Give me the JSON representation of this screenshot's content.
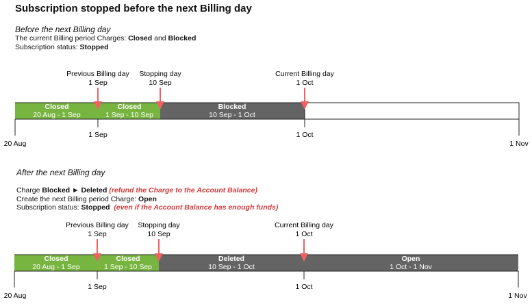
{
  "title": "Subscription stopped before the next Billing day",
  "before": {
    "heading": "Before the next Billing day",
    "line1_prefix": "The current Billing period Charges: ",
    "line1_b1": "Closed",
    "line1_mid": " and ",
    "line1_b2": "Blocked",
    "line2_prefix": "Subscription status: ",
    "line2_b": "Stopped"
  },
  "after": {
    "heading": "After the next Billing day",
    "line1_prefix": "Charge ",
    "line1_b1": "Blocked",
    "line1_arrow": " ► ",
    "line1_b2": "Deleted",
    "line1_note": " (refund the Charge to the Account Balance)",
    "line2_prefix": "Create the next Billing period Charge: ",
    "line2_b": "Open",
    "line3_prefix": "Subscription status: ",
    "line3_b": "Stopped",
    "line3_note": "  (even if the Account Balance has enough funds)"
  },
  "markers": {
    "prev_label": "Previous Billing day",
    "prev_date": "1 Sep",
    "stop_label": "Stopping day",
    "stop_date": "10 Sep",
    "current_label": "Current Billing day",
    "current_date": "1 Oct"
  },
  "axis": {
    "start": "20 Aug",
    "tick1": "1 Sep",
    "tick2": "1 Oct",
    "end": "1 Nov"
  },
  "timeline1": {
    "seg1_name": "Closed",
    "seg1_range": "20 Aug - 1 Sep",
    "seg2_name": "Closed",
    "seg2_range": "1 Sep - 10 Sep",
    "seg3_name": "Blocked",
    "seg3_range": "10 Sep - 1 Oct"
  },
  "timeline2": {
    "seg1_name": "Closed",
    "seg1_range": "20 Aug - 1 Sep",
    "seg2_name": "Closed",
    "seg2_range": "1 Sep - 10 Sep",
    "seg3_name": "Deleted",
    "seg3_range": "10 Sep - 1 Oct",
    "seg4_name": "Open",
    "seg4_range": "1 Oct - 1 Nov"
  },
  "colors": {
    "closed": "#77b540",
    "dark": "#646464",
    "marker": "#f06060",
    "note": "#d33a3a"
  }
}
